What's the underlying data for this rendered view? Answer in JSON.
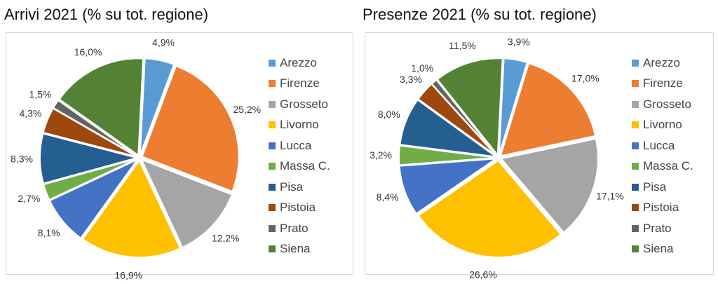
{
  "colors": {
    "Arezzo": "#5b9bd5",
    "Firenze": "#ed7d31",
    "Grosseto": "#a5a5a5",
    "Livorno": "#ffc000",
    "Lucca": "#4472c4",
    "Massa C.": "#70ad47",
    "Pisa": "#255e91",
    "Pistoia": "#9e480e",
    "Prato": "#636363",
    "Siena": "#548235"
  },
  "chart_data": [
    {
      "type": "pie",
      "title": "Arrivi 2021 (% su tot. regione)",
      "legend_position": "right",
      "categories": [
        "Arezzo",
        "Firenze",
        "Grosseto",
        "Livorno",
        "Lucca",
        "Massa C.",
        "Pisa",
        "Pistoia",
        "Prato",
        "Siena"
      ],
      "values": [
        4.9,
        25.2,
        12.2,
        16.9,
        8.1,
        2.7,
        8.3,
        4.3,
        1.5,
        16.0
      ],
      "labels": [
        "4,9%",
        "25,2%",
        "12,2%",
        "16,9%",
        "8,1%",
        "2,7%",
        "8,3%",
        "4,3%",
        "1,5%",
        "16,0%"
      ]
    },
    {
      "type": "pie",
      "title": "Presenze 2021 (% su tot. regione)",
      "legend_position": "right",
      "categories": [
        "Arezzo",
        "Firenze",
        "Grosseto",
        "Livorno",
        "Lucca",
        "Massa C.",
        "Pisa",
        "Pistoia",
        "Prato",
        "Siena"
      ],
      "values": [
        3.9,
        17.0,
        17.1,
        26.6,
        8.4,
        3.2,
        8.0,
        3.3,
        1.0,
        11.5
      ],
      "labels": [
        "3,9%",
        "17,0%",
        "17,1%",
        "26,6%",
        "8,4%",
        "3,2%",
        "8,0%",
        "3,3%",
        "1,0%",
        "11,5%"
      ]
    }
  ]
}
